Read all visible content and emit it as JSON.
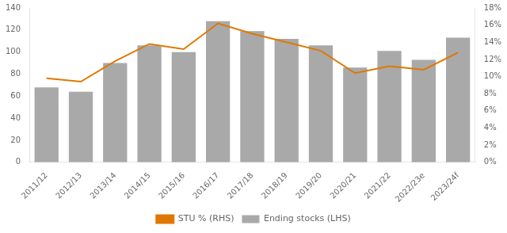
{
  "chart_data": {
    "type": "bar",
    "categories": [
      "2011/12",
      "2012/13",
      "2013/14",
      "2014/15",
      "2015/16",
      "2016/17",
      "2017/18",
      "2018/19",
      "2019/20",
      "2020/21",
      "2021/22",
      "2022/23e",
      "2023/24f"
    ],
    "series": [
      {
        "name": "Ending stocks (LHS)",
        "type": "bar",
        "color": "#a9a9a9",
        "values": [
          68,
          64,
          90,
          106,
          100,
          128,
          119,
          112,
          106,
          86,
          101,
          93,
          113
        ]
      },
      {
        "name": "STU % (RHS)",
        "type": "line",
        "axis": "y2",
        "color": "#e07800",
        "values": [
          9.8,
          9.4,
          11.8,
          13.8,
          13.2,
          16.2,
          15.0,
          14.0,
          13.0,
          10.4,
          11.2,
          10.8,
          12.8
        ]
      }
    ],
    "ylim": [
      0,
      140
    ],
    "yticks": [
      0,
      20,
      40,
      60,
      80,
      100,
      120,
      140
    ],
    "y2lim": [
      0,
      18
    ],
    "y2ticks": [
      {
        "value": 0,
        "label": "0%"
      },
      {
        "value": 2,
        "label": "2%"
      },
      {
        "value": 4,
        "label": "4%"
      },
      {
        "value": 6,
        "label": "6%"
      },
      {
        "value": 8,
        "label": "8%"
      },
      {
        "value": 10,
        "label": "10%"
      },
      {
        "value": 12,
        "label": "12%"
      },
      {
        "value": 14,
        "label": "14%"
      },
      {
        "value": 16,
        "label": "16%"
      },
      {
        "value": 18,
        "label": "18%"
      }
    ],
    "grid": false,
    "legend": "bottom"
  }
}
